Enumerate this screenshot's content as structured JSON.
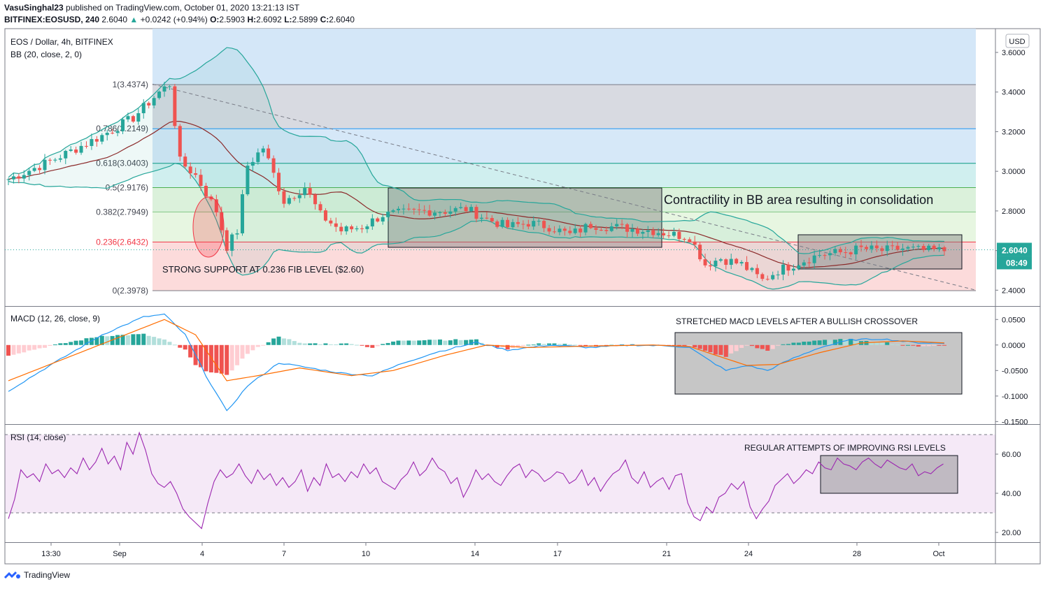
{
  "header": {
    "publisher": "VasuSinghal23",
    "published_text": "published on TradingView.com, October 01, 2020 13:21:13 IST",
    "symbol": "BITFINEX:EOSUSD, 240",
    "last": "2.6040",
    "change": "+0.0242 (+0.94%)",
    "ohlc_o_label": "O:",
    "ohlc_o": "2.5903",
    "ohlc_h_label": "H:",
    "ohlc_h": "2.6092",
    "ohlc_l_label": "L:",
    "ohlc_l": "2.5899",
    "ohlc_c_label": "C:",
    "ohlc_c": "2.6040"
  },
  "footer": {
    "brand": "TradingView"
  },
  "colors": {
    "up": "#26a69a",
    "down": "#ef5350",
    "bb": "#26a69a",
    "basis": "#8b2a2a",
    "macd": "#2196f3",
    "signal": "#ff6d00",
    "rsi": "#9c27b0"
  },
  "chart_data": [
    {
      "type": "candlestick",
      "title": "EOS / Dollar, 4h, BITFINEX",
      "indicator": "BB (20, close, 2, 0)",
      "currency": "USD",
      "ylim": [
        2.32,
        3.72
      ],
      "y_ticks": [
        "3.6000",
        "3.4000",
        "3.2000",
        "3.0000",
        "2.8000",
        "2.6000",
        "2.4000"
      ],
      "x_ticks": [
        "13:30",
        "Sep",
        "4",
        "7",
        "10",
        "14",
        "17",
        "21",
        "24",
        "28",
        "Oct"
      ],
      "last_price_label": "2.6040",
      "countdown": "08:49",
      "price_path": [
        [
          0,
          2.96
        ],
        [
          8,
          3.05
        ],
        [
          18,
          3.18
        ],
        [
          24,
          3.27
        ],
        [
          29,
          3.4
        ],
        [
          31,
          3.44
        ],
        [
          33,
          3.05
        ],
        [
          36,
          2.98
        ],
        [
          40,
          2.8
        ],
        [
          42,
          2.62
        ],
        [
          44,
          2.7
        ],
        [
          46,
          3.03
        ],
        [
          49,
          3.12
        ],
        [
          53,
          2.85
        ],
        [
          57,
          2.92
        ],
        [
          60,
          2.78
        ],
        [
          64,
          2.7
        ],
        [
          68,
          2.72
        ],
        [
          72,
          2.78
        ],
        [
          76,
          2.79
        ],
        [
          80,
          2.8
        ],
        [
          84,
          2.8
        ],
        [
          88,
          2.81
        ],
        [
          92,
          2.76
        ],
        [
          96,
          2.72
        ],
        [
          100,
          2.74
        ],
        [
          104,
          2.72
        ],
        [
          108,
          2.68
        ],
        [
          112,
          2.73
        ],
        [
          116,
          2.72
        ],
        [
          120,
          2.71
        ],
        [
          124,
          2.7
        ],
        [
          128,
          2.68
        ],
        [
          131,
          2.67
        ],
        [
          134,
          2.53
        ],
        [
          137,
          2.56
        ],
        [
          141,
          2.53
        ],
        [
          145,
          2.45
        ],
        [
          148,
          2.5
        ],
        [
          152,
          2.54
        ],
        [
          156,
          2.58
        ],
        [
          160,
          2.59
        ],
        [
          164,
          2.61
        ],
        [
          168,
          2.6
        ],
        [
          172,
          2.61
        ],
        [
          176,
          2.6
        ],
        [
          180,
          2.6
        ]
      ],
      "fibonacci": [
        {
          "level": "1",
          "price": 3.4374,
          "label": "1(3.4374)"
        },
        {
          "level": "0.786",
          "price": 3.2149,
          "label": "0.786(3.2149)"
        },
        {
          "level": "0.618",
          "price": 3.0403,
          "label": "0.618(3.0403)"
        },
        {
          "level": "0.5",
          "price": 2.9176,
          "label": "0.5(2.9176)"
        },
        {
          "level": "0.382",
          "price": 2.7949,
          "label": "0.382(2.7949)"
        },
        {
          "level": "0.236",
          "price": 2.6432,
          "label": "0.236(2.6432)"
        },
        {
          "level": "0",
          "price": 2.3978,
          "label": "0(2.3978)"
        }
      ],
      "annotations": [
        "Contractility in BB area resulting in consolidation",
        "STRONG SUPPORT AT 0.236 FIB LEVEL ($2.60)"
      ]
    },
    {
      "type": "line",
      "title": "MACD (12, 26, close, 9)",
      "ylim": [
        -0.155,
        0.075
      ],
      "y_ticks": [
        "0.0500",
        "0.0000",
        "-0.0500",
        "-0.1000",
        "-0.1500"
      ],
      "macd_path": [
        [
          0,
          -0.09
        ],
        [
          8,
          -0.04
        ],
        [
          18,
          0.02
        ],
        [
          26,
          0.055
        ],
        [
          30,
          0.06
        ],
        [
          34,
          0.02
        ],
        [
          38,
          -0.06
        ],
        [
          42,
          -0.13
        ],
        [
          46,
          -0.08
        ],
        [
          52,
          -0.035
        ],
        [
          58,
          -0.045
        ],
        [
          64,
          -0.055
        ],
        [
          70,
          -0.06
        ],
        [
          76,
          -0.035
        ],
        [
          82,
          -0.015
        ],
        [
          90,
          0.005
        ],
        [
          96,
          -0.01
        ],
        [
          104,
          0.0
        ],
        [
          112,
          -0.005
        ],
        [
          120,
          0.0
        ],
        [
          128,
          -0.002
        ],
        [
          131,
          -0.005
        ],
        [
          134,
          -0.025
        ],
        [
          138,
          -0.05
        ],
        [
          142,
          -0.04
        ],
        [
          146,
          -0.05
        ],
        [
          150,
          -0.03
        ],
        [
          156,
          -0.005
        ],
        [
          162,
          0.01
        ],
        [
          168,
          0.012
        ],
        [
          174,
          0.005
        ],
        [
          180,
          0.003
        ]
      ],
      "signal_path": [
        [
          0,
          -0.07
        ],
        [
          10,
          -0.03
        ],
        [
          20,
          0.01
        ],
        [
          30,
          0.05
        ],
        [
          36,
          0.02
        ],
        [
          42,
          -0.07
        ],
        [
          48,
          -0.06
        ],
        [
          56,
          -0.045
        ],
        [
          66,
          -0.06
        ],
        [
          74,
          -0.05
        ],
        [
          84,
          -0.02
        ],
        [
          92,
          0.0
        ],
        [
          100,
          -0.005
        ],
        [
          112,
          -0.002
        ],
        [
          124,
          0.0
        ],
        [
          131,
          -0.003
        ],
        [
          136,
          -0.02
        ],
        [
          142,
          -0.04
        ],
        [
          148,
          -0.038
        ],
        [
          156,
          -0.015
        ],
        [
          164,
          0.004
        ],
        [
          172,
          0.008
        ],
        [
          180,
          0.004
        ]
      ],
      "annotation": "STRETCHED MACD LEVELS AFTER A BULLISH CROSSOVER"
    },
    {
      "type": "line",
      "title": "RSI (14, close)",
      "ylim": [
        15,
        75
      ],
      "bands": [
        30,
        70
      ],
      "y_ticks": [
        "60.00",
        "40.00",
        "20.00"
      ],
      "rsi_values": [
        27,
        37,
        52,
        48,
        50,
        46,
        55,
        50,
        52,
        48,
        53,
        50,
        58,
        52,
        56,
        63,
        55,
        59,
        52,
        66,
        60,
        71,
        62,
        50,
        45,
        43,
        46,
        40,
        32,
        28,
        25,
        22,
        35,
        46,
        52,
        48,
        50,
        55,
        49,
        45,
        52,
        47,
        50,
        44,
        48,
        43,
        46,
        52,
        41,
        48,
        44,
        55,
        48,
        50,
        46,
        51,
        48,
        55,
        50,
        53,
        46,
        44,
        42,
        47,
        50,
        56,
        49,
        52,
        58,
        53,
        51,
        45,
        48,
        38,
        44,
        52,
        47,
        50,
        46,
        44,
        49,
        53,
        55,
        48,
        52,
        50,
        46,
        48,
        51,
        50,
        45,
        47,
        52,
        44,
        48,
        41,
        46,
        50,
        52,
        57,
        48,
        45,
        51,
        43,
        46,
        48,
        42,
        49,
        50,
        35,
        28,
        26,
        33,
        30,
        38,
        40,
        45,
        42,
        46,
        33,
        27,
        32,
        36,
        44,
        47,
        50,
        45,
        48,
        52,
        50,
        56,
        53,
        52,
        58,
        55,
        54,
        52,
        56,
        58,
        55,
        53,
        57,
        55,
        53,
        52,
        55,
        49,
        51,
        50,
        53,
        55
      ],
      "annotation": "REGULAR ATTEMPTS OF IMPROVING RSI LEVELS"
    }
  ]
}
